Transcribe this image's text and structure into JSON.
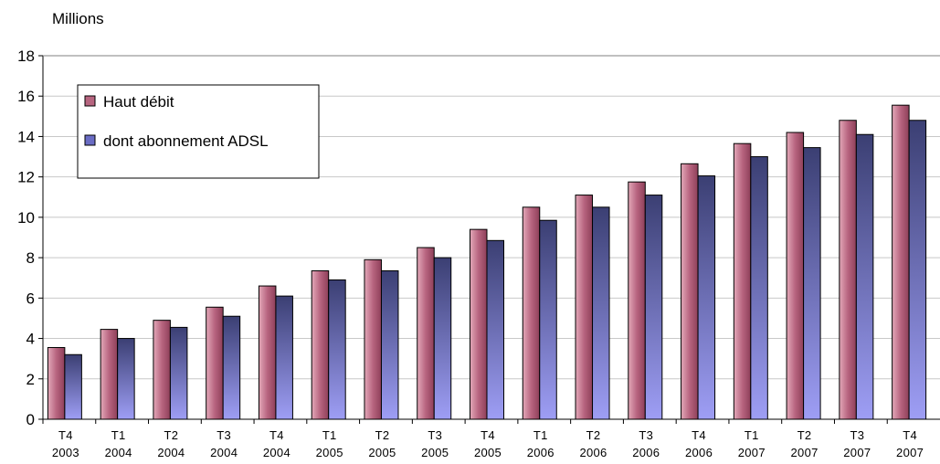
{
  "chart_data": {
    "type": "bar",
    "unit_label": "Millions",
    "title": "",
    "xlabel": "",
    "ylabel": "",
    "ylim": [
      0,
      18
    ],
    "yticks": [
      0,
      2,
      4,
      6,
      8,
      10,
      12,
      14,
      16,
      18
    ],
    "grid": true,
    "legend_position": "top-left",
    "categories": [
      [
        "T4",
        "2003"
      ],
      [
        "T1",
        "2004"
      ],
      [
        "T2",
        "2004"
      ],
      [
        "T3",
        "2004"
      ],
      [
        "T4",
        "2004"
      ],
      [
        "T1",
        "2005"
      ],
      [
        "T2",
        "2005"
      ],
      [
        "T3",
        "2005"
      ],
      [
        "T4",
        "2005"
      ],
      [
        "T1",
        "2006"
      ],
      [
        "T2",
        "2006"
      ],
      [
        "T3",
        "2006"
      ],
      [
        "T4",
        "2006"
      ],
      [
        "T1",
        "2007"
      ],
      [
        "T2",
        "2007"
      ],
      [
        "T3",
        "2007"
      ],
      [
        "T4",
        "2007"
      ]
    ],
    "series": [
      {
        "name": "Haut débit",
        "color_top": "#c7788f",
        "color_bottom": "#a34d6a",
        "values": [
          3.55,
          4.45,
          4.9,
          5.55,
          6.6,
          7.35,
          7.9,
          8.5,
          9.4,
          10.5,
          11.1,
          11.75,
          12.65,
          13.65,
          14.2,
          14.8,
          15.55
        ]
      },
      {
        "name": "dont abonnement ADSL",
        "color_top": "#3b3f73",
        "color_bottom": "#9e9ef5",
        "values": [
          3.2,
          4.0,
          4.55,
          5.1,
          6.1,
          6.9,
          7.35,
          8.0,
          8.85,
          9.85,
          10.5,
          11.1,
          12.05,
          13.0,
          13.45,
          14.1,
          14.8
        ]
      }
    ]
  }
}
